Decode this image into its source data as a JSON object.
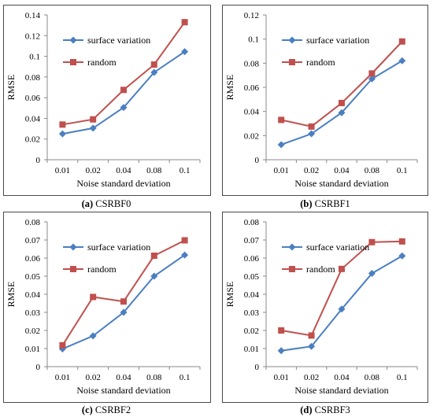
{
  "series_colors": {
    "surface variation": "#4a7fc1",
    "random": "#c0504d"
  },
  "chart_data": [
    {
      "type": "line",
      "panel_label": "(a)",
      "title": "CSRBF0",
      "xlabel": "Noise standard deviation",
      "ylabel": "RMSE",
      "categories": [
        "0.01",
        "0.02",
        "0.04",
        "0.08",
        "0.1"
      ],
      "ylim": [
        0,
        0.14
      ],
      "yticks": [
        "0",
        "0.02",
        "0.04",
        "0.06",
        "0.08",
        "0.1",
        "0.12",
        "0.14"
      ],
      "legend_position": "top-left",
      "grid": false,
      "series": [
        {
          "name": "surface variation",
          "marker": "diamond",
          "values": [
            0.025,
            0.0305,
            0.0505,
            0.0845,
            0.1045
          ]
        },
        {
          "name": "random",
          "marker": "square",
          "values": [
            0.034,
            0.039,
            0.0675,
            0.092,
            0.133
          ]
        }
      ]
    },
    {
      "type": "line",
      "panel_label": "(b)",
      "title": "CSRBF1",
      "xlabel": "Noise standard deviation",
      "ylabel": "RMSE",
      "categories": [
        "0.01",
        "0.02",
        "0.04",
        "0.08",
        "0.1"
      ],
      "ylim": [
        0,
        0.12
      ],
      "yticks": [
        "0",
        "0.02",
        "0.04",
        "0.06",
        "0.08",
        "0.1",
        "0.12"
      ],
      "legend_position": "top-left",
      "grid": false,
      "series": [
        {
          "name": "surface variation",
          "marker": "diamond",
          "values": [
            0.0125,
            0.0215,
            0.039,
            0.067,
            0.082
          ]
        },
        {
          "name": "random",
          "marker": "square",
          "values": [
            0.033,
            0.0275,
            0.047,
            0.0715,
            0.098
          ]
        }
      ]
    },
    {
      "type": "line",
      "panel_label": "(c)",
      "title": "CSRBF2",
      "xlabel": "Noise standard deviation",
      "ylabel": "RMSE",
      "categories": [
        "0.01",
        "0.02",
        "0.04",
        "0.08",
        "0.1"
      ],
      "ylim": [
        0,
        0.08
      ],
      "yticks": [
        "0",
        "0.01",
        "0.02",
        "0.03",
        "0.04",
        "0.05",
        "0.06",
        "0.07",
        "0.08"
      ],
      "legend_position": "top-left",
      "grid": false,
      "series": [
        {
          "name": "surface variation",
          "marker": "diamond",
          "values": [
            0.0098,
            0.017,
            0.03,
            0.05,
            0.0617
          ]
        },
        {
          "name": "random",
          "marker": "square",
          "values": [
            0.0118,
            0.0385,
            0.036,
            0.0613,
            0.0698
          ]
        }
      ]
    },
    {
      "type": "line",
      "panel_label": "(d)",
      "title": "CSRBF3",
      "xlabel": "Noise standard deviation",
      "ylabel": "RMSE",
      "categories": [
        "0.01",
        "0.02",
        "0.04",
        "0.08",
        "0.1"
      ],
      "ylim": [
        0,
        0.08
      ],
      "yticks": [
        "0",
        "0.01",
        "0.02",
        "0.03",
        "0.04",
        "0.05",
        "0.06",
        "0.07",
        "0.08"
      ],
      "legend_position": "top-left",
      "grid": false,
      "series": [
        {
          "name": "surface variation",
          "marker": "diamond",
          "values": [
            0.0088,
            0.0112,
            0.0318,
            0.0515,
            0.0612
          ]
        },
        {
          "name": "random",
          "marker": "square",
          "values": [
            0.02,
            0.0172,
            0.054,
            0.0688,
            0.0692
          ]
        }
      ]
    }
  ]
}
